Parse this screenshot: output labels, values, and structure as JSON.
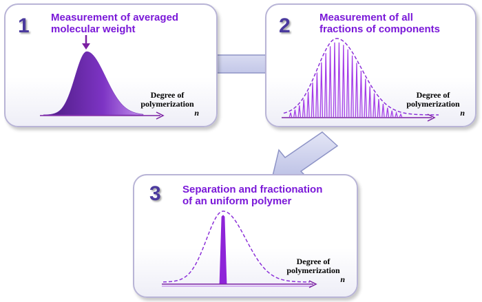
{
  "panels": [
    {
      "number": "1",
      "title_line1": "Measurement of averaged",
      "title_line2": "molecular weight",
      "axis_line1": "Degree of",
      "axis_line2": "polymerization",
      "axis_var": "n"
    },
    {
      "number": "2",
      "title_line1": "Measurement of all",
      "title_line2": "fractions of components",
      "axis_line1": "Degree of",
      "axis_line2": "polymerization",
      "axis_var": "n"
    },
    {
      "number": "3",
      "title_line1": "Separation and fractionation",
      "title_line2": "of an uniform polymer",
      "axis_line1": "Degree of",
      "axis_line2": "polymerization",
      "axis_var": "n"
    }
  ],
  "colors": {
    "number": "#4b3a9e",
    "title": "#7a18d8",
    "curve": "#9b3fe0",
    "axis": "#7b1fa2",
    "arrow": "#c5c8ea"
  }
}
